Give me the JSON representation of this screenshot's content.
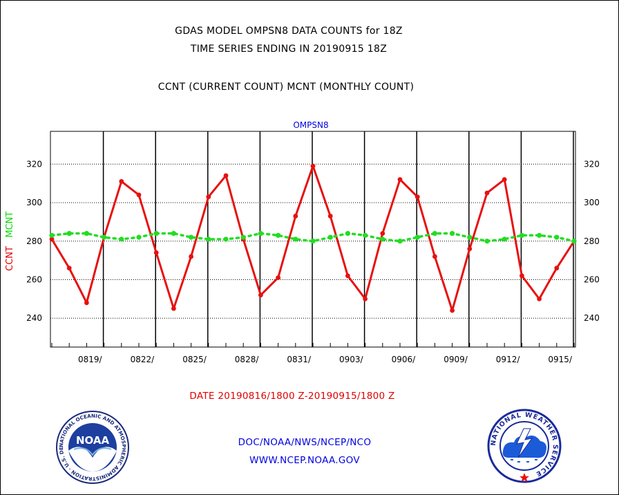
{
  "header": {
    "title_line1": "GDAS MODEL OMPSN8 DATA COUNTS for 18Z",
    "title_line2": "TIME SERIES ENDING IN 20190915 18Z",
    "subtitle": "CCNT (CURRENT COUNT) MCNT (MONTHLY COUNT)"
  },
  "footer": {
    "date_range": "DATE 20190816/1800 Z-20190915/1800 Z",
    "credit_line1": "DOC/NOAA/NWS/NCEP/NCO",
    "credit_line2": "WWW.NCEP.NOAA.GOV"
  },
  "logos": {
    "left_text": "NOAA",
    "left_ring_text": "NATIONAL OCEANIC AND ATMOSPHERIC ADMINISTRATION · U.S. DEPARTMENT OF COMMERCE",
    "right_ring_text": "NATIONAL WEATHER SERVICE"
  },
  "colors": {
    "ccnt": "#e81010",
    "mcnt": "#22dd22",
    "title_blue": "#0000e0"
  },
  "chart_data": {
    "type": "line",
    "title": "OMPSN8",
    "ylabel_parts": [
      "CCNT",
      "MCNT"
    ],
    "ylim": [
      225,
      337
    ],
    "yticks": [
      240,
      260,
      280,
      300,
      320
    ],
    "xlim": [
      0,
      30
    ],
    "xtick_labels": [
      "0819/",
      "0822/",
      "0825/",
      "0828/",
      "0831/",
      "0903/",
      "0906/",
      "0909/",
      "0912/",
      "0915/"
    ],
    "xtick_positions": [
      3,
      6,
      9,
      12,
      15,
      18,
      21,
      24,
      27,
      30
    ],
    "grid": true,
    "series": [
      {
        "name": "CCNT",
        "color": "#e81010",
        "x": [
          0,
          1,
          2,
          3,
          4,
          5,
          6,
          7,
          8,
          9,
          10,
          11,
          12,
          13,
          14,
          15,
          16,
          17,
          18,
          19,
          20,
          21,
          22,
          23,
          24,
          25,
          26,
          27,
          28,
          29,
          30
        ],
        "values": [
          281,
          266,
          248,
          282,
          311,
          304,
          274,
          245,
          272,
          303,
          314,
          281,
          252,
          261,
          293,
          319,
          293,
          262,
          250,
          284,
          312,
          303,
          272,
          244,
          276,
          305,
          312,
          262,
          250,
          266,
          280
        ]
      },
      {
        "name": "MCNT",
        "color": "#22dd22",
        "x": [
          0,
          1,
          2,
          3,
          4,
          5,
          6,
          7,
          8,
          9,
          10,
          11,
          12,
          13,
          14,
          15,
          16,
          17,
          18,
          19,
          20,
          21,
          22,
          23,
          24,
          25,
          26,
          27,
          28,
          29,
          30
        ],
        "values": [
          283,
          284,
          284,
          282,
          281,
          282,
          284,
          284,
          282,
          281,
          281,
          282,
          284,
          283,
          281,
          280,
          282,
          284,
          283,
          281,
          280,
          282,
          284,
          284,
          282,
          280,
          281,
          283,
          283,
          282,
          280
        ]
      }
    ]
  }
}
